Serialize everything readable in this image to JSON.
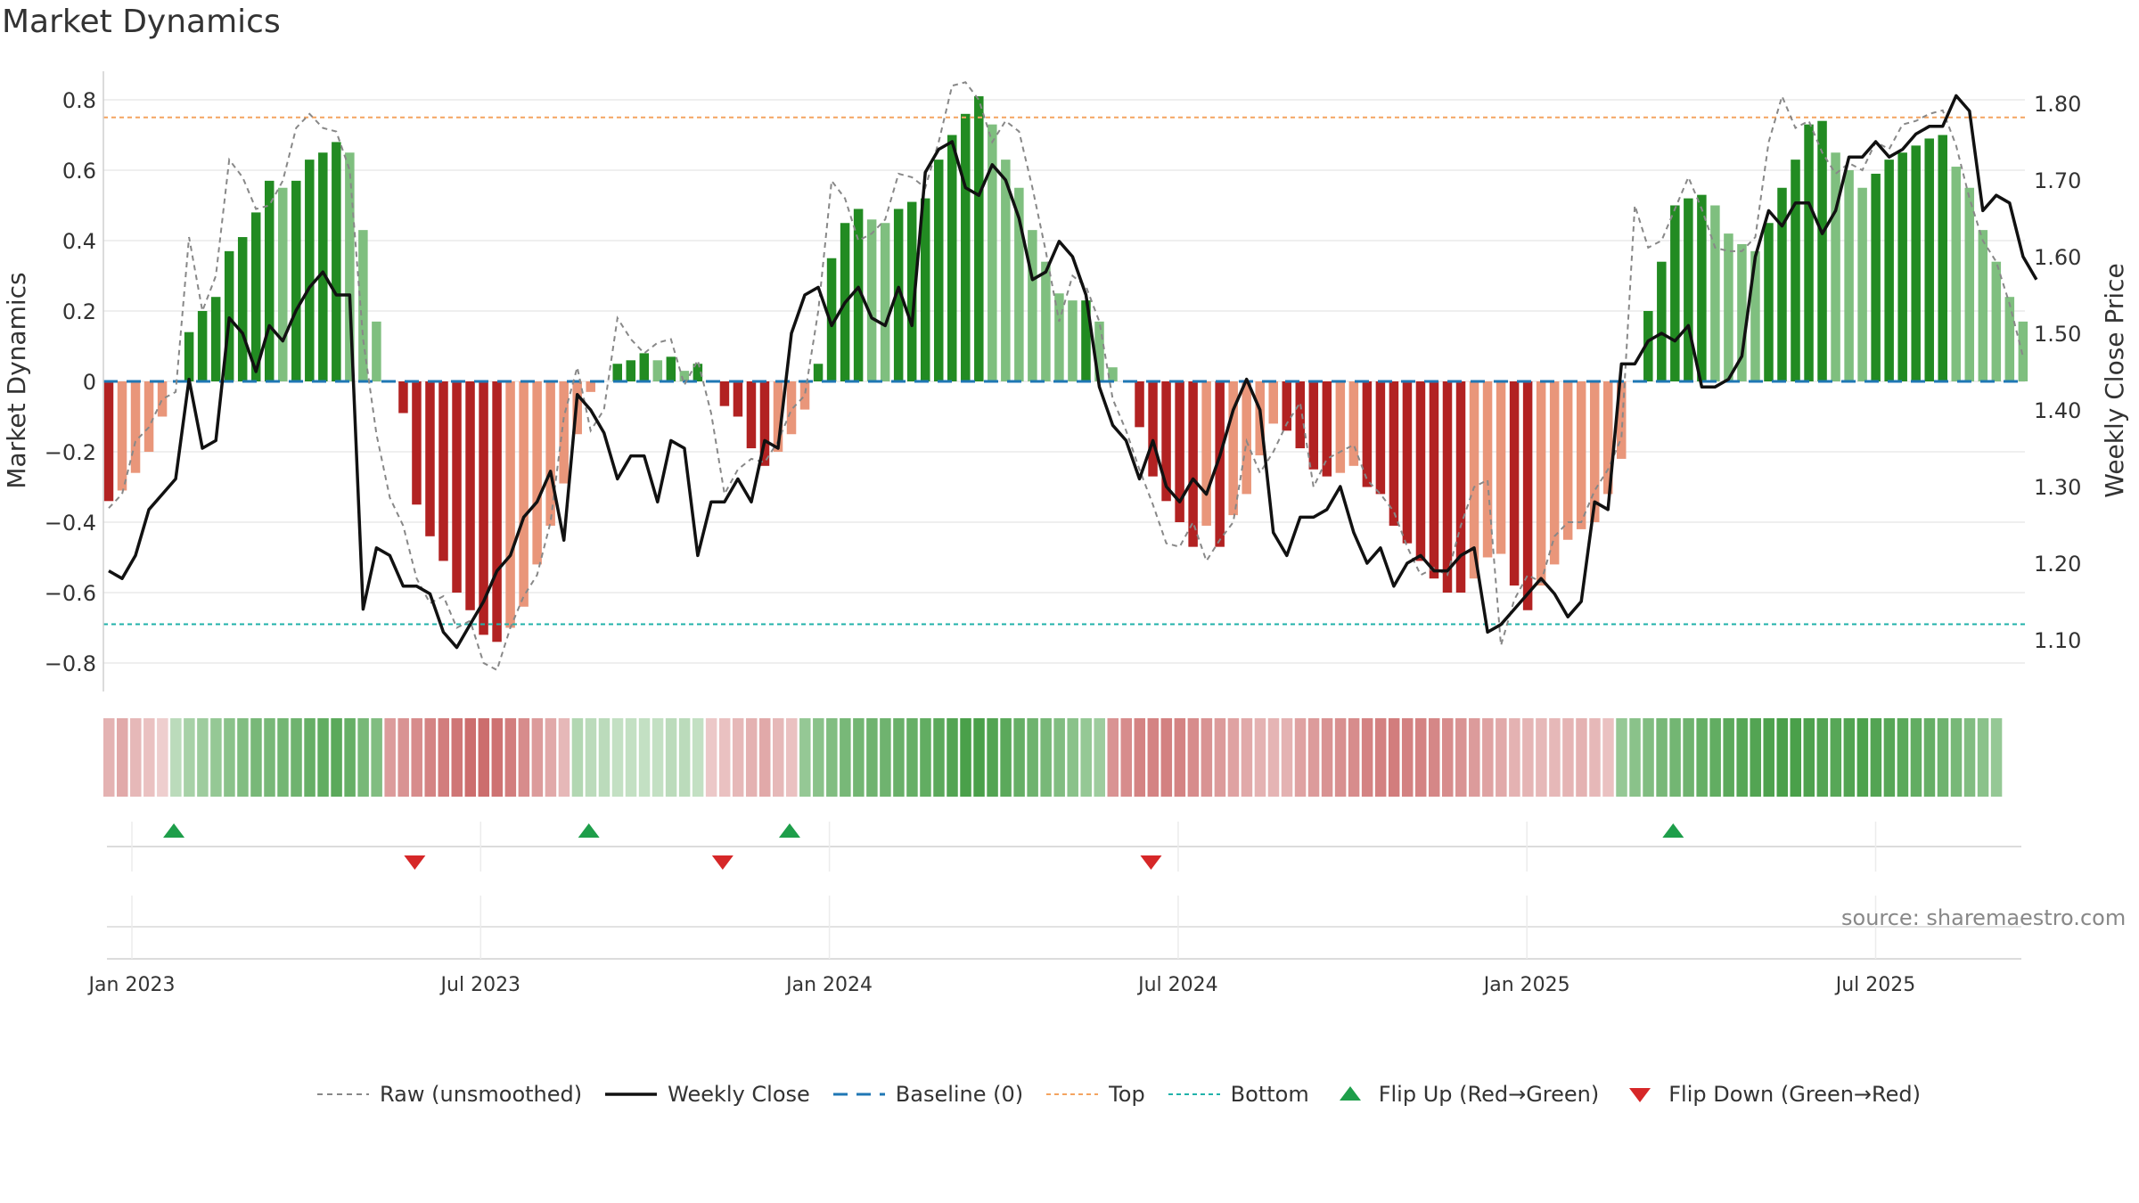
{
  "title": "Market Dynamics",
  "source_label": "source: sharemaestro.com",
  "legend": {
    "raw": "Raw (unsmoothed)",
    "close": "Weekly Close",
    "baseline": "Baseline (0)",
    "top": "Top",
    "bottom": "Bottom",
    "flip_up": "Flip Up (Red→Green)",
    "flip_down": "Flip Down (Green→Red)"
  },
  "colors": {
    "strong_green": "#228b22",
    "light_green": "#7fbf7f",
    "strong_red": "#b22222",
    "light_red": "#e9967a",
    "raw_line": "#888888",
    "close_line": "#111111",
    "baseline": "#1f77b4",
    "top": "#f4a460",
    "bottom": "#20b2aa",
    "flip_up": "#1e9e4a",
    "flip_down": "#d62728"
  },
  "chart_data": {
    "type": "bar",
    "left_axis_label": "Market Dynamics",
    "right_axis_label": "Weekly Close Price",
    "left_ylim": [
      -0.88,
      0.88
    ],
    "right_ylim": [
      1.04,
      1.83
    ],
    "left_ticks": [
      0.8,
      0.6,
      0.4,
      0.2,
      0,
      -0.2,
      -0.4,
      -0.6,
      -0.8
    ],
    "left_tick_labels": [
      "0.8",
      "0.6",
      "0.4",
      "0.2",
      "0",
      "−0.2",
      "−0.4",
      "−0.6",
      "−0.8"
    ],
    "right_ticks": [
      1.8,
      1.7,
      1.6,
      1.5,
      1.4,
      1.3,
      1.2,
      1.1
    ],
    "right_tick_labels": [
      "1.80",
      "1.70",
      "1.60",
      "1.50",
      "1.40",
      "1.30",
      "1.20",
      "1.10"
    ],
    "x_tick_labels": [
      "Jan 2023",
      "Jul 2023",
      "Jan 2024",
      "Jul 2024",
      "Jan 2025",
      "Jul 2025"
    ],
    "x_tick_weeks": [
      0,
      26,
      52,
      78,
      104,
      130
    ],
    "first_week": "2022-12-26",
    "top_level": 0.75,
    "bottom_level": -0.69,
    "baseline": 0,
    "dynamics": [
      -0.34,
      -0.31,
      -0.26,
      -0.2,
      -0.1,
      0,
      0.14,
      0.2,
      0.24,
      0.37,
      0.41,
      0.48,
      0.57,
      0.55,
      0.57,
      0.63,
      0.65,
      0.68,
      0.65,
      0.43,
      0.17,
      0,
      -0.09,
      -0.35,
      -0.44,
      -0.51,
      -0.6,
      -0.65,
      -0.72,
      -0.74,
      -0.7,
      -0.64,
      -0.52,
      -0.41,
      -0.29,
      -0.15,
      -0.03,
      0,
      0.05,
      0.06,
      0.08,
      0.06,
      0.07,
      0.03,
      0.05,
      0,
      -0.07,
      -0.1,
      -0.19,
      -0.24,
      -0.2,
      -0.15,
      -0.08,
      0.05,
      0.35,
      0.45,
      0.49,
      0.46,
      0.45,
      0.49,
      0.51,
      0.52,
      0.63,
      0.7,
      0.76,
      0.81,
      0.73,
      0.63,
      0.55,
      0.43,
      0.34,
      0.25,
      0.23,
      0.23,
      0.17,
      0.04,
      0,
      -0.13,
      -0.27,
      -0.34,
      -0.4,
      -0.47,
      -0.41,
      -0.47,
      -0.38,
      -0.32,
      -0.21,
      -0.12,
      -0.14,
      -0.19,
      -0.25,
      -0.27,
      -0.26,
      -0.24,
      -0.3,
      -0.32,
      -0.41,
      -0.46,
      -0.51,
      -0.56,
      -0.6,
      -0.6,
      -0.56,
      -0.5,
      -0.49,
      -0.58,
      -0.65,
      -0.58,
      -0.52,
      -0.45,
      -0.42,
      -0.4,
      -0.32,
      -0.22,
      0,
      0.2,
      0.34,
      0.5,
      0.52,
      0.53,
      0.5,
      0.42,
      0.39,
      0.37,
      0.45,
      0.55,
      0.63,
      0.73,
      0.74,
      0.65,
      0.6,
      0.55,
      0.59,
      0.63,
      0.65,
      0.67,
      0.69,
      0.7,
      0.61,
      0.55,
      0.43,
      0.34,
      0.24,
      0.17
    ],
    "raw": [
      -0.36,
      -0.32,
      -0.17,
      -0.13,
      -0.05,
      -0.03,
      0.41,
      0.2,
      0.3,
      0.63,
      0.58,
      0.49,
      0.5,
      0.57,
      0.72,
      0.76,
      0.72,
      0.71,
      0.6,
      0.12,
      -0.15,
      -0.33,
      -0.41,
      -0.56,
      -0.63,
      -0.61,
      -0.7,
      -0.68,
      -0.8,
      -0.82,
      -0.7,
      -0.61,
      -0.55,
      -0.4,
      -0.1,
      0.04,
      -0.14,
      -0.08,
      0.18,
      0.12,
      0.08,
      0.11,
      0.12,
      -0.01,
      0.06,
      -0.09,
      -0.32,
      -0.25,
      -0.22,
      -0.23,
      -0.17,
      -0.08,
      -0.04,
      0.2,
      0.57,
      0.52,
      0.4,
      0.42,
      0.46,
      0.59,
      0.58,
      0.55,
      0.68,
      0.84,
      0.85,
      0.8,
      0.68,
      0.74,
      0.71,
      0.55,
      0.37,
      0.17,
      0.3,
      0.27,
      0.17,
      -0.05,
      -0.14,
      -0.25,
      -0.35,
      -0.46,
      -0.47,
      -0.4,
      -0.51,
      -0.45,
      -0.4,
      -0.17,
      -0.26,
      -0.2,
      -0.12,
      -0.06,
      -0.3,
      -0.22,
      -0.2,
      -0.18,
      -0.28,
      -0.32,
      -0.37,
      -0.47,
      -0.55,
      -0.53,
      -0.55,
      -0.41,
      -0.3,
      -0.28,
      -0.75,
      -0.62,
      -0.55,
      -0.57,
      -0.44,
      -0.4,
      -0.4,
      -0.31,
      -0.25,
      -0.16,
      0.5,
      0.38,
      0.4,
      0.49,
      0.58,
      0.49,
      0.38,
      0.37,
      0.37,
      0.41,
      0.68,
      0.81,
      0.72,
      0.74,
      0.65,
      0.59,
      0.62,
      0.6,
      0.68,
      0.66,
      0.73,
      0.74,
      0.76,
      0.77,
      0.67,
      0.52,
      0.4,
      0.34,
      0.22,
      0.07
    ]
  },
  "close_series": {
    "weeks": [
      0,
      1,
      2,
      3,
      4,
      5,
      6,
      7,
      8,
      9,
      10,
      11,
      12,
      13,
      14,
      15,
      16,
      17,
      18,
      19,
      20,
      21,
      22,
      23,
      24,
      25,
      26,
      27,
      28,
      29,
      30,
      31,
      32,
      33,
      34,
      35,
      36,
      37,
      38,
      39,
      40,
      41,
      42,
      43,
      44,
      45,
      46,
      47,
      48,
      49,
      50,
      51,
      52,
      53,
      54,
      55,
      56,
      57,
      58,
      59,
      60,
      61,
      62,
      63,
      64,
      65,
      66,
      67,
      68,
      69,
      70,
      71,
      72,
      73,
      74,
      75,
      76,
      77,
      78,
      79,
      80,
      81,
      82,
      83,
      84,
      85,
      86,
      87,
      88,
      89,
      90,
      91,
      92,
      93,
      94,
      95,
      96,
      97,
      98,
      99,
      100,
      101,
      102,
      103,
      104,
      105,
      106,
      107,
      108,
      109,
      110,
      111,
      112,
      113,
      114,
      115,
      116,
      117,
      118,
      119,
      120,
      121,
      122,
      123,
      124,
      125,
      126,
      127,
      128,
      129,
      130,
      131,
      132,
      133,
      134,
      135,
      136,
      137,
      138,
      139,
      140,
      141,
      142,
      143,
      144
    ],
    "values": [
      1.19,
      1.18,
      1.21,
      1.27,
      1.29,
      1.31,
      1.44,
      1.35,
      1.36,
      1.52,
      1.5,
      1.45,
      1.51,
      1.49,
      1.53,
      1.56,
      1.58,
      1.55,
      1.55,
      1.14,
      1.22,
      1.21,
      1.17,
      1.17,
      1.16,
      1.11,
      1.09,
      1.12,
      1.15,
      1.19,
      1.21,
      1.26,
      1.28,
      1.32,
      1.23,
      1.42,
      1.4,
      1.37,
      1.31,
      1.34,
      1.34,
      1.28,
      1.36,
      1.35,
      1.21,
      1.28,
      1.28,
      1.31,
      1.28,
      1.36,
      1.35,
      1.5,
      1.55,
      1.56,
      1.51,
      1.54,
      1.56,
      1.52,
      1.51,
      1.56,
      1.51,
      1.71,
      1.74,
      1.75,
      1.69,
      1.68,
      1.72,
      1.7,
      1.65,
      1.57,
      1.58,
      1.62,
      1.6,
      1.55,
      1.43,
      1.38,
      1.36,
      1.31,
      1.36,
      1.3,
      1.28,
      1.31,
      1.29,
      1.34,
      1.4,
      1.44,
      1.4,
      1.24,
      1.21,
      1.26,
      1.26,
      1.27,
      1.3,
      1.24,
      1.2,
      1.22,
      1.17,
      1.2,
      1.21,
      1.19,
      1.19,
      1.21,
      1.22,
      1.11,
      1.12,
      1.14,
      1.16,
      1.18,
      1.16,
      1.13,
      1.15,
      1.28,
      1.27,
      1.46,
      1.46,
      1.49,
      1.5,
      1.49,
      1.51,
      1.43,
      1.43,
      1.44,
      1.47,
      1.6,
      1.66,
      1.64,
      1.67,
      1.67,
      1.63,
      1.66,
      1.73,
      1.73,
      1.75,
      1.73,
      1.74,
      1.76,
      1.77,
      1.77,
      1.81,
      1.79,
      1.66,
      1.68,
      1.67,
      1.6,
      1.57
    ]
  },
  "regime_bands": [
    -0.4,
    -0.45,
    -0.35,
    -0.3,
    -0.2,
    0.25,
    0.35,
    0.4,
    0.45,
    0.5,
    0.55,
    0.6,
    0.6,
    0.62,
    0.65,
    0.7,
    0.72,
    0.75,
    0.7,
    0.6,
    0.55,
    -0.55,
    -0.6,
    -0.65,
    -0.7,
    -0.75,
    -0.8,
    -0.85,
    -0.85,
    -0.82,
    -0.75,
    -0.65,
    -0.55,
    -0.45,
    -0.35,
    0.3,
    0.25,
    0.25,
    0.2,
    0.2,
    0.2,
    0.2,
    0.25,
    0.25,
    0.2,
    -0.25,
    -0.3,
    -0.35,
    -0.4,
    -0.45,
    -0.35,
    -0.3,
    0.45,
    0.5,
    0.55,
    0.6,
    0.62,
    0.65,
    0.65,
    0.68,
    0.7,
    0.72,
    0.75,
    0.8,
    0.85,
    0.85,
    0.8,
    0.75,
    0.7,
    0.65,
    0.6,
    0.55,
    0.5,
    0.45,
    0.4,
    -0.6,
    -0.65,
    -0.7,
    -0.7,
    -0.72,
    -0.7,
    -0.65,
    -0.6,
    -0.55,
    -0.5,
    -0.45,
    -0.4,
    -0.38,
    -0.4,
    -0.5,
    -0.55,
    -0.6,
    -0.62,
    -0.65,
    -0.7,
    -0.72,
    -0.75,
    -0.72,
    -0.7,
    -0.68,
    -0.65,
    -0.6,
    -0.55,
    -0.5,
    -0.45,
    -0.4,
    -0.38,
    -0.35,
    -0.35,
    -0.38,
    -0.4,
    -0.35,
    -0.3,
    0.45,
    0.5,
    0.55,
    0.6,
    0.62,
    0.65,
    0.7,
    0.72,
    0.75,
    0.78,
    0.8,
    0.82,
    0.85,
    0.85,
    0.82,
    0.8,
    0.78,
    0.8,
    0.82,
    0.8,
    0.78,
    0.75,
    0.72,
    0.7,
    0.65,
    0.6,
    0.55,
    0.5,
    0.45
  ],
  "flips": {
    "up_weeks": [
      3,
      34,
      49,
      115
    ],
    "down_weeks": [
      19,
      42,
      74
    ]
  }
}
